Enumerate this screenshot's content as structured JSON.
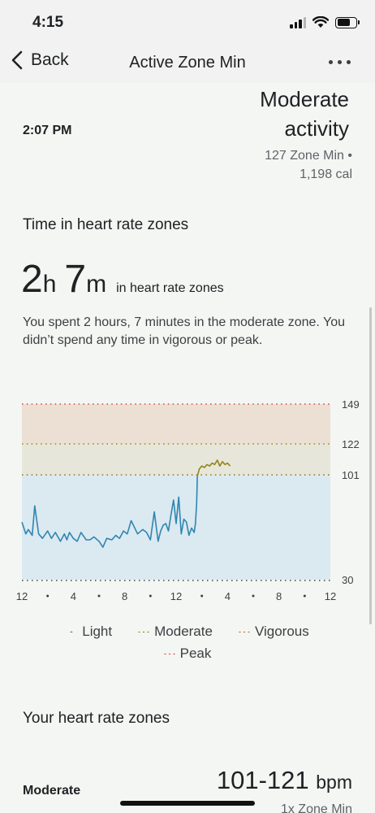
{
  "status_bar": {
    "time": "4:15"
  },
  "nav": {
    "back_label": "Back",
    "title": "Active Zone Min"
  },
  "activity": {
    "time": "2:07 PM",
    "name_line1": "Moderate",
    "name_line2": "activity",
    "zone_min": "127 Zone Min •",
    "calories": "1,198 cal"
  },
  "heart_rate_section": {
    "title": "Time in heart rate zones",
    "hours_value": "2",
    "hours_unit": "h",
    "minutes_value": "7",
    "minutes_unit": "m",
    "suffix": "in heart rate zones",
    "summary": "You spent 2 hours, 7 minutes in the moderate zone. You didn’t spend any time in vigorous or peak."
  },
  "chart_data": {
    "type": "line",
    "ylim": [
      30,
      149
    ],
    "y_ticks": [
      "149",
      "122",
      "101",
      "30"
    ],
    "x_ticks": [
      "12",
      "4",
      "8",
      "12",
      "4",
      "8",
      "12"
    ],
    "zones": [
      {
        "name": "Light",
        "from": 30,
        "to": 101,
        "color": "#dbe9f1"
      },
      {
        "name": "Moderate",
        "from": 101,
        "to": 122,
        "color": "#e7e6da"
      },
      {
        "name": "Vigorous",
        "from": 122,
        "to": 149,
        "color": "#ecdfd4"
      }
    ],
    "series": [
      {
        "zone": "Light",
        "color": "#2f86b0",
        "x": [
          0,
          0.3,
          0.5,
          0.8,
          1,
          1.3,
          1.6,
          2,
          2.3,
          2.6,
          3,
          3.3,
          3.5,
          3.7,
          4,
          4.3,
          4.6,
          5,
          5.3,
          5.6,
          6,
          6.3,
          6.6,
          7,
          7.3,
          7.6,
          7.9,
          8.2,
          8.5,
          9,
          9.4,
          9.7,
          10,
          10.3,
          10.6,
          10.8,
          11,
          11.2,
          11.4,
          11.6,
          11.8,
          12,
          12.2,
          12.4,
          12.6,
          12.8,
          13,
          13.2,
          13.4,
          13.5,
          13.6,
          13.65
        ],
        "y": [
          69,
          61,
          64,
          60,
          80,
          61,
          58,
          63,
          58,
          62,
          56,
          61,
          57,
          62,
          58,
          56,
          62,
          57,
          57,
          59,
          56,
          52,
          58,
          57,
          60,
          58,
          63,
          61,
          70,
          61,
          64,
          62,
          57,
          76,
          56,
          63,
          67,
          68,
          63,
          74,
          84,
          68,
          86,
          61,
          71,
          69,
          60,
          65,
          62,
          68,
          82,
          100
        ]
      },
      {
        "zone": "Moderate",
        "color": "#918517",
        "x": [
          13.65,
          13.8,
          14,
          14.2,
          14.4,
          14.6,
          14.8,
          15,
          15.2,
          15.4,
          15.6,
          15.8,
          16,
          16.2
        ],
        "y": [
          100,
          105,
          107,
          106,
          108,
          107,
          109,
          108,
          111,
          107,
          110,
          108,
          109,
          107
        ]
      }
    ],
    "legend": [
      {
        "label": "Light",
        "color": "#2f86b0"
      },
      {
        "label": "Moderate",
        "color": "#918517"
      },
      {
        "label": "Vigorous",
        "color": "#b57432"
      },
      {
        "label": "Peak",
        "color": "#d74b4b"
      }
    ]
  },
  "zones_section": {
    "title": "Your heart rate zones",
    "zone_name": "Moderate",
    "range": "101-121",
    "unit": "bpm",
    "multiplier": "1x Zone Min"
  }
}
